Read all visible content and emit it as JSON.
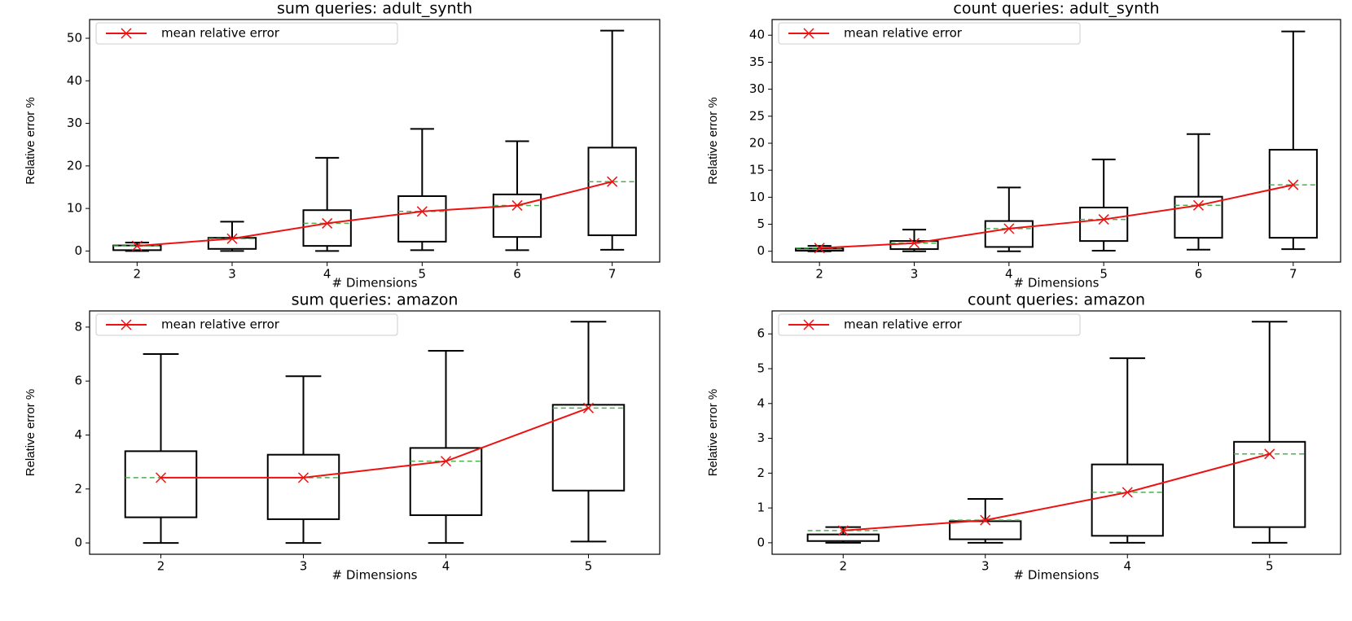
{
  "chart_data": [
    {
      "type": "box",
      "title": "sum queries: adult_synth",
      "xlabel": "# Dimensions",
      "ylabel": "Relative error %",
      "categories": [
        "2",
        "3",
        "4",
        "5",
        "6",
        "7"
      ],
      "whislo": [
        0,
        0,
        0,
        0.2,
        0.2,
        0.3
      ],
      "q1": [
        0.2,
        0.5,
        1.2,
        2.2,
        3.3,
        3.7
      ],
      "q3": [
        1.3,
        3.1,
        9.6,
        12.9,
        13.3,
        24.3
      ],
      "whishi": [
        2,
        6.9,
        21.9,
        28.7,
        25.8,
        51.8
      ],
      "series": [
        {
          "name": "mean relative error",
          "color": "#ee1111",
          "values": [
            1.2,
            2.9,
            6.5,
            9.3,
            10.7,
            16.3
          ]
        }
      ],
      "mean_line_color": "#4caf50",
      "ylim": [
        -2.6,
        54.4
      ],
      "yticks": [
        0,
        10,
        20,
        30,
        40,
        50
      ],
      "grid": false,
      "legend": "upper left"
    },
    {
      "type": "box",
      "title": "count queries: adult_synth",
      "xlabel": "# Dimensions",
      "ylabel": "Relative error %",
      "categories": [
        "2",
        "3",
        "4",
        "5",
        "6",
        "7"
      ],
      "whislo": [
        0,
        0,
        0,
        0.1,
        0.3,
        0.4
      ],
      "q1": [
        0.1,
        0.4,
        0.8,
        1.9,
        2.5,
        2.5
      ],
      "q3": [
        0.5,
        1.9,
        5.6,
        8.1,
        10.1,
        18.8
      ],
      "whishi": [
        1,
        4,
        11.8,
        17,
        21.7,
        40.7
      ],
      "series": [
        {
          "name": "mean relative error",
          "color": "#ee1111",
          "values": [
            0.6,
            1.5,
            4.2,
            5.9,
            8.5,
            12.3
          ]
        }
      ],
      "mean_line_color": "#4caf50",
      "ylim": [
        -2,
        42.9
      ],
      "yticks": [
        0,
        5,
        10,
        15,
        20,
        25,
        30,
        35,
        40
      ],
      "grid": false,
      "legend": "upper left"
    },
    {
      "type": "box",
      "title": "sum queries: amazon",
      "xlabel": "# Dimensions",
      "ylabel": "Relative error %",
      "categories": [
        "2",
        "3",
        "4",
        "5"
      ],
      "whislo": [
        0,
        0,
        0,
        0.05
      ],
      "q1": [
        0.95,
        0.88,
        1.03,
        1.94
      ],
      "q3": [
        3.4,
        3.27,
        3.52,
        5.12
      ],
      "whishi": [
        7,
        6.18,
        7.12,
        8.2
      ],
      "series": [
        {
          "name": "mean relative error",
          "color": "#ee1111",
          "values": [
            2.42,
            2.42,
            3.03,
            5.0
          ]
        }
      ],
      "mean_line_color": "#4caf50",
      "ylim": [
        -0.42,
        8.6
      ],
      "yticks": [
        0,
        2,
        4,
        6,
        8
      ],
      "grid": false,
      "legend": "upper left"
    },
    {
      "type": "box",
      "title": "count queries: amazon",
      "xlabel": "# Dimensions",
      "ylabel": "Relative error %",
      "categories": [
        "2",
        "3",
        "4",
        "5"
      ],
      "whislo": [
        0,
        0,
        0,
        0
      ],
      "q1": [
        0.05,
        0.1,
        0.2,
        0.45
      ],
      "q3": [
        0.24,
        0.62,
        2.25,
        2.9
      ],
      "whishi": [
        0.45,
        1.26,
        5.3,
        6.35
      ],
      "series": [
        {
          "name": "mean relative error",
          "color": "#ee1111",
          "values": [
            0.35,
            0.65,
            1.45,
            2.55
          ]
        }
      ],
      "mean_line_color": "#4caf50",
      "ylim": [
        -0.33,
        6.66
      ],
      "yticks": [
        0,
        1,
        2,
        3,
        4,
        5,
        6
      ],
      "grid": false,
      "legend": "upper left"
    }
  ]
}
